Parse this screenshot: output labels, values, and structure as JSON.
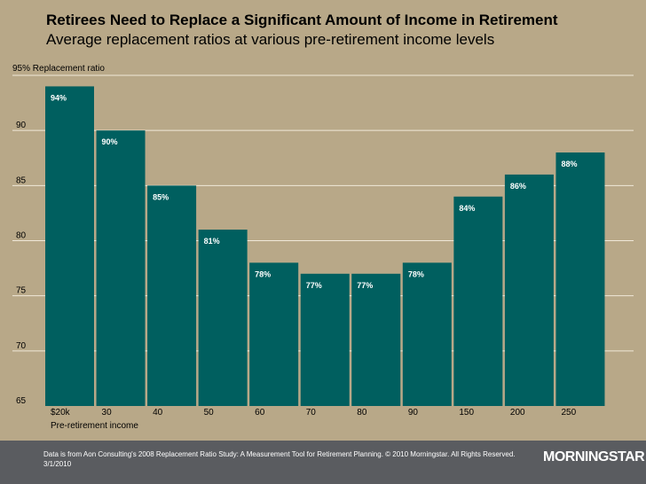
{
  "chart_data": {
    "type": "bar",
    "title": "Retirees Need to Replace a Significant Amount of Income in Retirement",
    "subtitle": "Average replacement ratios at various pre-retirement income levels",
    "ylabel": "95% Replacement ratio",
    "xlabel": "Pre-retirement income",
    "ylim": [
      65,
      95
    ],
    "yticks": [
      90,
      85,
      80,
      75,
      70,
      65
    ],
    "categories": [
      "$20k",
      "30",
      "40",
      "50",
      "60",
      "70",
      "80",
      "90",
      "150",
      "200",
      "250"
    ],
    "values": [
      94,
      90,
      85,
      81,
      78,
      77,
      77,
      78,
      84,
      86,
      88
    ],
    "data_labels": [
      "94%",
      "90%",
      "85%",
      "81%",
      "78%",
      "77%",
      "77%",
      "78%",
      "84%",
      "86%",
      "88%"
    ],
    "bar_color": "#005f5f",
    "grid": true
  },
  "footer": {
    "source": "Data is from Aon Consulting's 2008 Replacement Ratio Study: A Measurement Tool for Retirement Planning. © 2010 Morningstar. All Rights Reserved.",
    "date": "3/1/2010",
    "logo": "MORNINGSTAR"
  },
  "colors": {
    "background": "#b8a888",
    "footer": "#5a5c60",
    "bar": "#005f5f",
    "grid": "#f0e8d8"
  }
}
